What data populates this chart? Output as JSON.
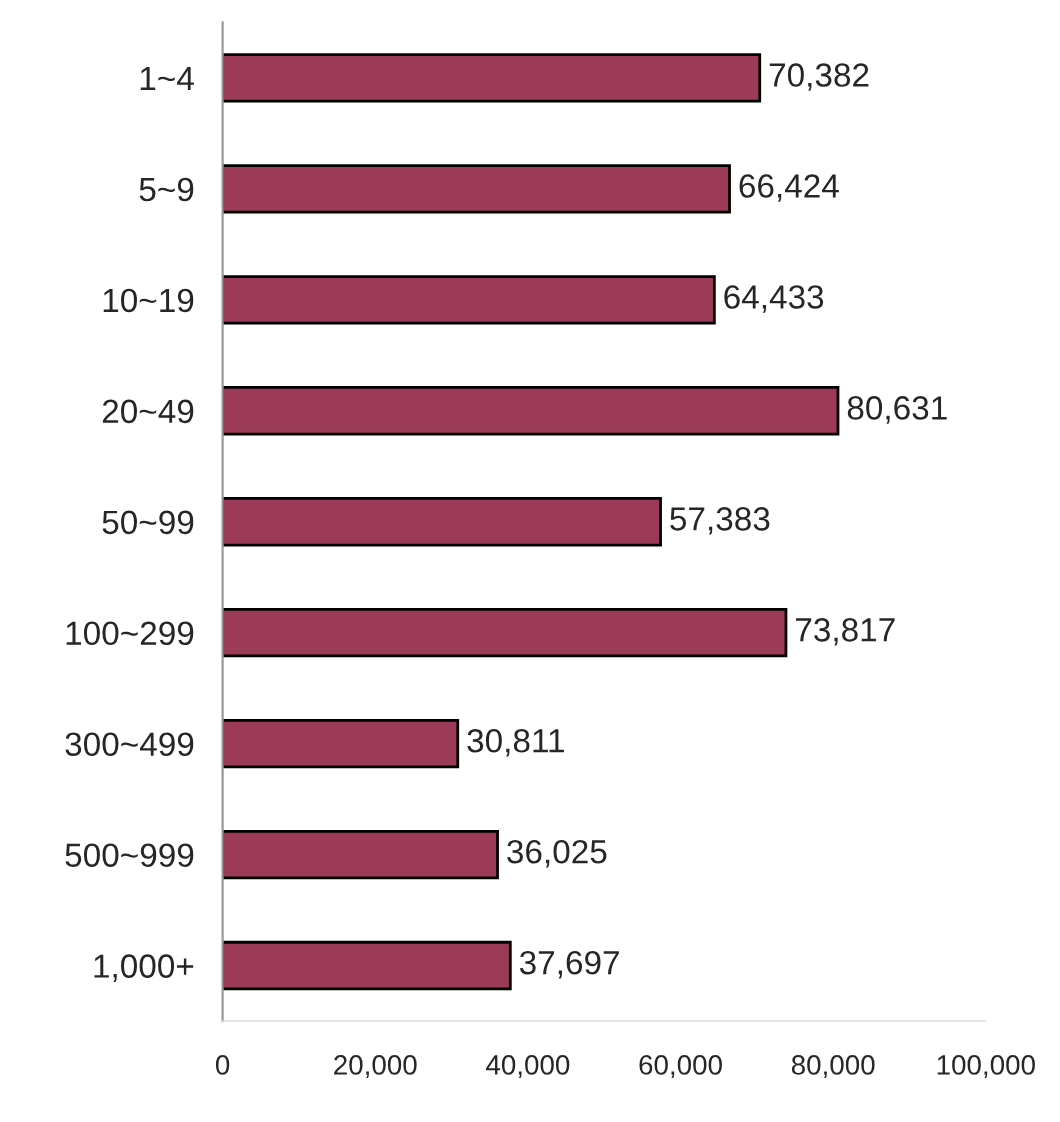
{
  "chart_data": {
    "type": "bar",
    "orientation": "horizontal",
    "categories": [
      "1~4",
      "5~9",
      "10~19",
      "20~49",
      "50~99",
      "100~299",
      "300~499",
      "500~999",
      "1,000+"
    ],
    "values": [
      70382,
      66424,
      64433,
      80631,
      57383,
      73817,
      30811,
      36025,
      37697
    ],
    "value_labels": [
      "70,382",
      "66,424",
      "64,433",
      "80,631",
      "57,383",
      "73,817",
      "30,811",
      "36,025",
      "37,697"
    ],
    "color": "#9b3b57",
    "xlim": [
      0,
      100000
    ],
    "xticks": [
      0,
      {
        "value": 20000,
        "label": "20,000"
      },
      {
        "value": 40000,
        "label": "40,000"
      },
      {
        "value": 60000,
        "label": "60,000"
      },
      {
        "value": 80000,
        "label": "80,000"
      },
      {
        "value": 100000,
        "label": "100,000"
      }
    ],
    "grid": false,
    "legend": false
  }
}
